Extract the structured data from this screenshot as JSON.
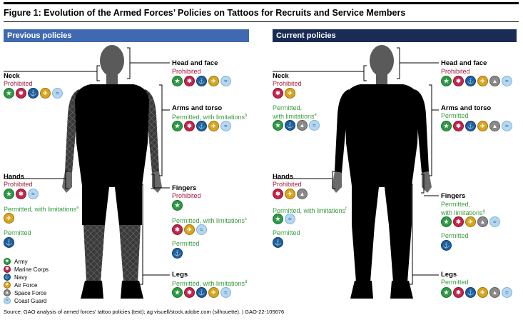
{
  "figure": {
    "title": "Figure 1: Evolution of the Armed Forces’ Policies on Tattoos for Recruits and Service Members",
    "source": "Source: GAO analysis of armed forces' tattoo policies (text); ag visuell/stock.adobe.com (silhouette).  |  GAO-22-105676"
  },
  "colors": {
    "previous_header": "#3f6ab1",
    "current_header": "#1a2b55",
    "prohibited": "#a11a3a",
    "permitted": "#3a9a3e"
  },
  "services": {
    "army": {
      "name": "Army",
      "glyph": "★"
    },
    "marine": {
      "name": "Marine Corps",
      "glyph": "✱"
    },
    "navy": {
      "name": "Navy",
      "glyph": "⚓"
    },
    "af": {
      "name": "Air Force",
      "glyph": "✈"
    },
    "sf": {
      "name": "Space Force",
      "glyph": "▲"
    },
    "cg": {
      "name": "Coast Guard",
      "glyph": "≈"
    }
  },
  "previous": {
    "header": "Previous policies",
    "head_face": {
      "title": "Head and face",
      "status": "Prohibited",
      "icons": [
        "army",
        "marine",
        "navy",
        "af",
        "cg"
      ]
    },
    "neck": {
      "title": "Neck",
      "status": "Prohibited",
      "icons": [
        "army",
        "marine",
        "navy",
        "af",
        "cg"
      ]
    },
    "arms_torso": {
      "title": "Arms and torso",
      "status": "Permitted, with limitations",
      "sup": "b",
      "icons": [
        "army",
        "marine",
        "navy",
        "af",
        "cg"
      ]
    },
    "hands": {
      "title": "Hands",
      "prohibited": "Prohibited",
      "prohibited_icons": [
        "army",
        "marine",
        "cg"
      ],
      "limited": "Permitted, with limitations",
      "limited_sup": "a",
      "limited_icons": [
        "af"
      ],
      "permitted": "Permitted",
      "permitted_icons": [
        "navy"
      ]
    },
    "fingers": {
      "title": "Fingers",
      "prohibited": "Prohibited",
      "prohibited_icons": [
        "army"
      ],
      "limited": "Permitted, with limitations",
      "limited_sup": "c",
      "limited_icons": [
        "marine",
        "af",
        "cg"
      ],
      "permitted": "Permitted",
      "permitted_icons": [
        "navy"
      ]
    },
    "legs": {
      "title": "Legs",
      "status": "Permitted, with limitations",
      "sup": "d",
      "icons": [
        "army",
        "marine",
        "navy",
        "af",
        "cg"
      ]
    }
  },
  "current": {
    "header": "Current policies",
    "head_face": {
      "title": "Head and face",
      "status": "Prohibited",
      "icons": [
        "army",
        "marine",
        "navy",
        "af",
        "sf",
        "cg"
      ]
    },
    "neck": {
      "title": "Neck",
      "status": "Prohibited",
      "icons": [
        "marine",
        "af"
      ],
      "limited": "Permitted,",
      "limited2": "with limitations",
      "limited_sup": "e",
      "limited_icons": [
        "army",
        "navy",
        "sf",
        "cg"
      ]
    },
    "arms_torso": {
      "title": "Arms and torso",
      "status": "Permitted",
      "icons": [
        "army",
        "marine",
        "navy",
        "af",
        "sf",
        "cg"
      ]
    },
    "hands": {
      "title": "Hands",
      "prohibited": "Prohibited",
      "prohibited_icons": [
        "marine",
        "af",
        "sf"
      ],
      "limited": "Permitted, with limitations",
      "limited_sup": "f",
      "limited_icons": [
        "army",
        "cg"
      ],
      "permitted": "Permitted",
      "permitted_icons": [
        "navy"
      ]
    },
    "fingers": {
      "title": "Fingers",
      "limited": "Permitted,",
      "limited2": "with limitations",
      "limited_sup": "g",
      "limited_icons": [
        "army",
        "marine",
        "af",
        "sf",
        "cg"
      ],
      "permitted": "Permitted",
      "permitted_icons": [
        "navy"
      ]
    },
    "legs": {
      "title": "Legs",
      "status": "Permitted",
      "icons": [
        "army",
        "marine",
        "navy",
        "af",
        "sf",
        "cg"
      ]
    }
  },
  "legend": [
    "army",
    "marine",
    "navy",
    "af",
    "sf",
    "cg"
  ]
}
